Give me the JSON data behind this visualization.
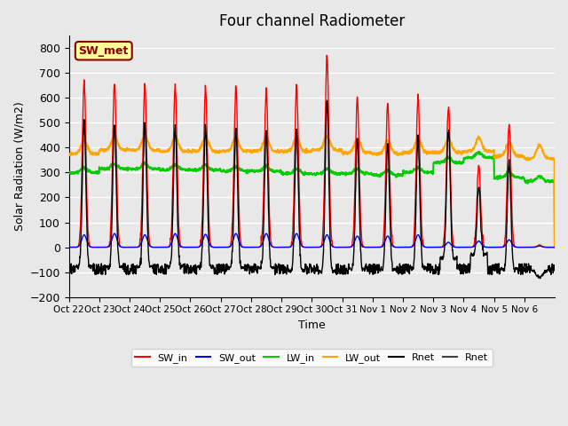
{
  "title": "Four channel Radiometer",
  "xlabel": "Time",
  "ylabel": "Solar Radiation (W/m2)",
  "ylim": [
    -200,
    850
  ],
  "yticks": [
    -200,
    -100,
    0,
    100,
    200,
    300,
    400,
    500,
    600,
    700,
    800
  ],
  "x_labels": [
    "Oct 22",
    "Oct 23",
    "Oct 24",
    "Oct 25",
    "Oct 26",
    "Oct 27",
    "Oct 28",
    "Oct 29",
    "Oct 30",
    "Oct 31",
    "Nov 1",
    "Nov 2",
    "Nov 3",
    "Nov 4",
    "Nov 5",
    "Nov 6"
  ],
  "annotation_text": "SW_met",
  "annotation_facecolor": "#FFFF99",
  "annotation_edgecolor": "#8B0000",
  "annotation_textcolor": "#8B0000",
  "bg_color": "#E8E8E8",
  "grid_color": "white",
  "colors": {
    "SW_in": "#FF0000",
    "SW_out": "#0000FF",
    "LW_in": "#00CC00",
    "LW_out": "#FFA500",
    "Rnet": "#000000",
    "Rnet2": "#404040"
  },
  "legend_labels": [
    "SW_in",
    "SW_out",
    "LW_in",
    "LW_out",
    "Rnet",
    "Rnet"
  ]
}
